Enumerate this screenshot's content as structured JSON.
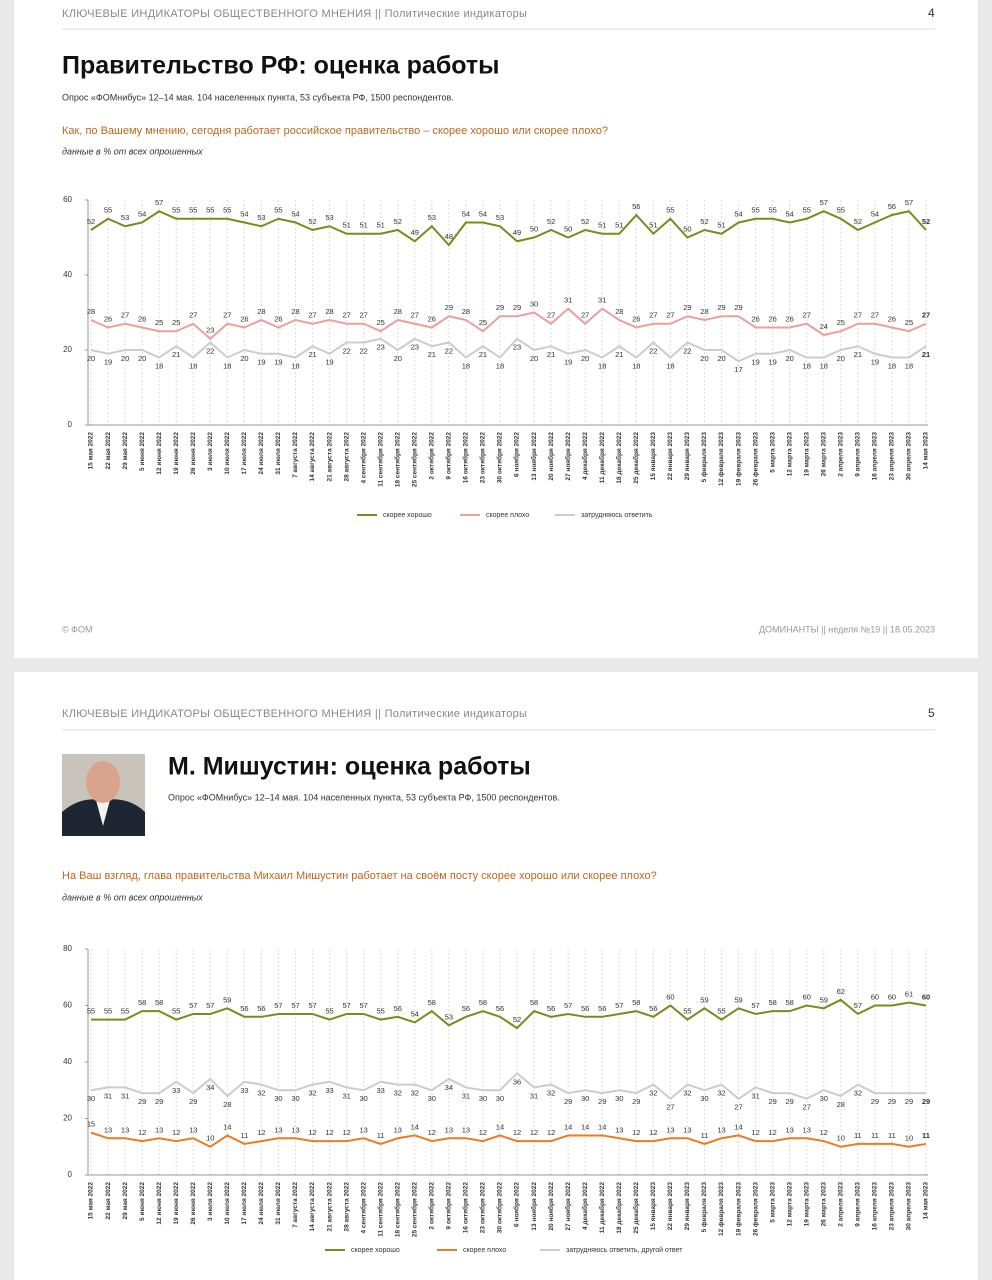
{
  "pages": [
    {
      "header": "КЛЮЧЕВЫЕ ИНДИКАТОРЫ ОБЩЕСТВЕННОГО МНЕНИЯ  ||  Политические индикаторы",
      "page_number": "4",
      "title": "Правительство РФ: оценка работы",
      "subtitle": "Опрос «ФОМнибус» 12–14 мая. 104 населенных пункта, 53 субъекта РФ, 1500 респондентов.",
      "footer_left": "© ФОМ",
      "footer_right": "ДОМИНАНТЫ  ||  неделя №19 || 18.05.2023"
    },
    {
      "header": "КЛЮЧЕВЫЕ ИНДИКАТОРЫ ОБЩЕСТВЕННОГО МНЕНИЯ  ||  Политические индикаторы",
      "page_number": "5",
      "title": "М. Мишустин: оценка работы",
      "subtitle": "Опрос «ФОМнибус» 12–14 мая. 104 населенных пункта, 53 субъекта РФ, 1500 респондентов."
    }
  ],
  "chart_data": [
    {
      "type": "line",
      "title": "Как, по Вашему мнению, сегодня работает российское правительство – скорее хорошо или скорее плохо?",
      "subtitle": "данные в % от всех опрошенных",
      "categories": [
        "15 мая 2022",
        "22 мая 2022",
        "29 мая 2022",
        "5 июня 2022",
        "12 июня 2022",
        "19 июня 2022",
        "26 июня 2022",
        "3 июля 2022",
        "10 июля 2022",
        "17 июля 2022",
        "24 июля 2022",
        "31 июля 2022",
        "7 августа 2022",
        "14 августа 2022",
        "21 августа 2022",
        "28 августа 2022",
        "4 сентября 2022",
        "11 сентября 2022",
        "18 сентября 2022",
        "25 сентября 2022",
        "2 октября 2022",
        "9 октября 2022",
        "16 октября 2022",
        "23 октября 2022",
        "30 октября 2022",
        "6 ноября 2022",
        "13 ноября 2022",
        "20 ноября 2022",
        "27 ноября 2022",
        "4 декабря 2022",
        "11 декабря 2022",
        "18 декабря 2022",
        "25 декабря 2022",
        "15 января 2023",
        "22 января 2023",
        "29 января 2023",
        "5 февраля 2023",
        "12 февраля 2023",
        "19 февраля 2023",
        "26 февраля 2023",
        "5 марта 2023",
        "12 марта 2023",
        "19 марта 2023",
        "26 марта 2023",
        "2 апреля 2023",
        "9 апреля 2023",
        "16 апреля 2023",
        "23 апреля 2023",
        "30 апреля 2023",
        "14 мая 2023"
      ],
      "series": [
        {
          "name": "скорее хорошо",
          "color": "#7a8a1c",
          "values": [
            52,
            55,
            53,
            54,
            57,
            55,
            55,
            55,
            55,
            54,
            53,
            55,
            54,
            52,
            53,
            51,
            51,
            51,
            52,
            49,
            53,
            48,
            54,
            54,
            53,
            49,
            50,
            52,
            50,
            52,
            51,
            51,
            56,
            51,
            55,
            50,
            52,
            51,
            54,
            55,
            55,
            54,
            55,
            57,
            55,
            52,
            54,
            56,
            57,
            52
          ]
        },
        {
          "name": "скорее плохо",
          "color": "#eaa0a0",
          "values": [
            28,
            26,
            27,
            26,
            25,
            25,
            27,
            23,
            27,
            26,
            28,
            26,
            28,
            27,
            28,
            27,
            27,
            25,
            28,
            27,
            26,
            29,
            28,
            25,
            29,
            29,
            30,
            27,
            31,
            27,
            31,
            28,
            26,
            27,
            27,
            29,
            28,
            29,
            29,
            26,
            26,
            26,
            27,
            24,
            25,
            27,
            27,
            26,
            25,
            27
          ]
        },
        {
          "name": "затрудняюсь ответить",
          "color": "#cccccc",
          "values": [
            20,
            19,
            20,
            20,
            18,
            21,
            18,
            22,
            18,
            20,
            19,
            19,
            18,
            21,
            19,
            22,
            22,
            23,
            20,
            23,
            21,
            22,
            18,
            21,
            18,
            23,
            20,
            21,
            19,
            20,
            18,
            21,
            18,
            22,
            18,
            22,
            20,
            20,
            17,
            19,
            19,
            20,
            18,
            18,
            20,
            21,
            19,
            18,
            18,
            21
          ]
        }
      ],
      "ylim": [
        0,
        60
      ],
      "yticks": [
        0,
        20,
        40,
        60
      ],
      "grid": true
    },
    {
      "type": "line",
      "title": "На Ваш взгляд, глава правительства Михаил Мишустин работает на своём посту скорее хорошо или скорее плохо?",
      "subtitle": "данные в % от всех опрошенных",
      "categories": [
        "15 мая 2022",
        "22 мая 2022",
        "29 мая 2022",
        "5 июня 2022",
        "12 июня 2022",
        "19 июня 2022",
        "26 июня 2022",
        "3 июля 2022",
        "10 июля 2022",
        "17 июля 2022",
        "24 июля 2022",
        "31 июля 2022",
        "7 августа 2022",
        "14 августа 2022",
        "21 августа 2022",
        "28 августа 2022",
        "4 сентября 2022",
        "11 сентября 2022",
        "18 сентября 2022",
        "25 сентября 2022",
        "2 октября 2022",
        "9 октября 2022",
        "16 октября 2022",
        "23 октября 2022",
        "30 октября 2022",
        "6 ноября 2022",
        "13 ноября 2022",
        "20 ноября 2022",
        "27 ноября 2022",
        "4 декабря 2022",
        "11 декабря 2022",
        "18 декабря 2022",
        "25 декабря 2022",
        "15 января 2023",
        "22 января 2023",
        "29 января 2023",
        "5 февраля 2023",
        "12 февраля 2023",
        "19 февраля 2023",
        "26 февраля 2023",
        "5 марта 2023",
        "12 марта 2023",
        "19 марта 2023",
        "26 марта 2023",
        "2 апреля 2023",
        "9 апреля 2023",
        "16 апреля 2023",
        "23 апреля 2023",
        "30 апреля 2023",
        "14 мая 2023"
      ],
      "series": [
        {
          "name": "скорее хорошо",
          "color": "#7a8a1c",
          "values": [
            55,
            55,
            55,
            58,
            58,
            55,
            57,
            57,
            59,
            56,
            56,
            57,
            57,
            57,
            55,
            57,
            57,
            55,
            56,
            54,
            58,
            53,
            56,
            58,
            56,
            52,
            58,
            56,
            57,
            56,
            56,
            57,
            58,
            56,
            60,
            55,
            59,
            55,
            59,
            57,
            58,
            58,
            60,
            59,
            62,
            57,
            60,
            60,
            61,
            60
          ]
        },
        {
          "name": "скорее плохо",
          "color": "#ee7a22",
          "values": [
            15,
            13,
            13,
            12,
            13,
            12,
            13,
            10,
            14,
            11,
            12,
            13,
            13,
            12,
            12,
            12,
            13,
            11,
            13,
            14,
            12,
            13,
            13,
            12,
            14,
            12,
            12,
            12,
            14,
            14,
            14,
            13,
            12,
            12,
            13,
            13,
            11,
            13,
            14,
            12,
            12,
            13,
            13,
            12,
            10,
            11,
            11,
            11,
            10,
            11
          ]
        },
        {
          "name": "затрудняюсь ответить, другой ответ",
          "color": "#cccccc",
          "values": [
            30,
            31,
            31,
            29,
            29,
            33,
            29,
            34,
            28,
            33,
            32,
            30,
            30,
            32,
            33,
            31,
            30,
            33,
            32,
            32,
            30,
            34,
            31,
            30,
            30,
            36,
            31,
            32,
            29,
            30,
            29,
            30,
            29,
            32,
            27,
            32,
            30,
            32,
            27,
            31,
            29,
            29,
            27,
            30,
            28,
            32,
            29,
            29,
            29,
            29
          ]
        }
      ],
      "ylim": [
        0,
        80
      ],
      "yticks": [
        0,
        20,
        40,
        60,
        80
      ],
      "grid": true
    }
  ]
}
